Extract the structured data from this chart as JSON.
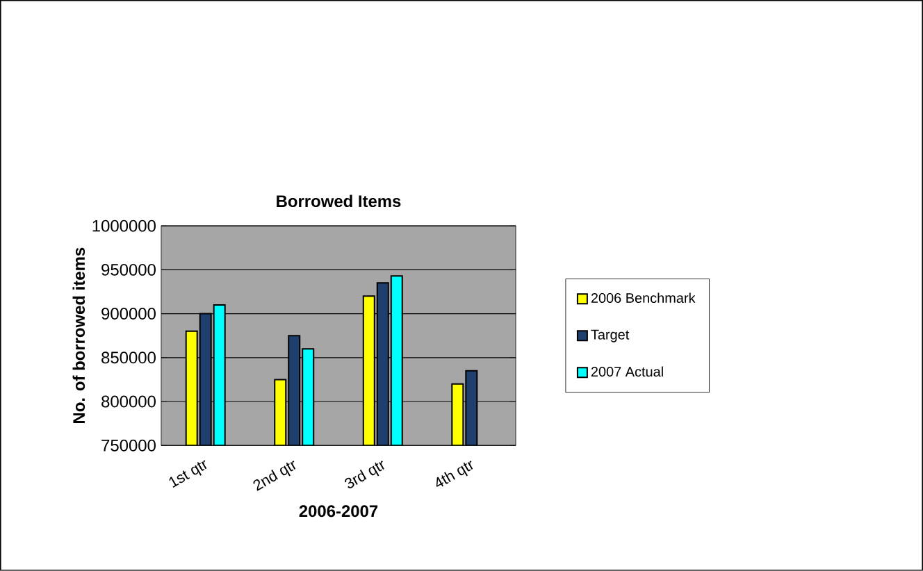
{
  "chart_data": {
    "type": "bar",
    "title": "Borrowed Items",
    "xlabel": "2006-2007",
    "ylabel": "No. of borrowed items",
    "categories": [
      "1st qtr",
      "2nd qtr",
      "3rd qtr",
      "4th qtr"
    ],
    "series": [
      {
        "name": "2006 Benchmark",
        "color": "#ffff00",
        "values": [
          880000,
          825000,
          920000,
          820000
        ]
      },
      {
        "name": "Target",
        "color": "#1f3f6f",
        "values": [
          900000,
          875000,
          935000,
          835000
        ]
      },
      {
        "name": "2007 Actual",
        "color": "#00ffff",
        "values": [
          910000,
          860000,
          943000,
          null
        ]
      }
    ],
    "ylim": [
      750000,
      1000000
    ],
    "yticks": [
      750000,
      800000,
      850000,
      900000,
      950000,
      1000000
    ],
    "grid": "y",
    "legend": "right"
  }
}
